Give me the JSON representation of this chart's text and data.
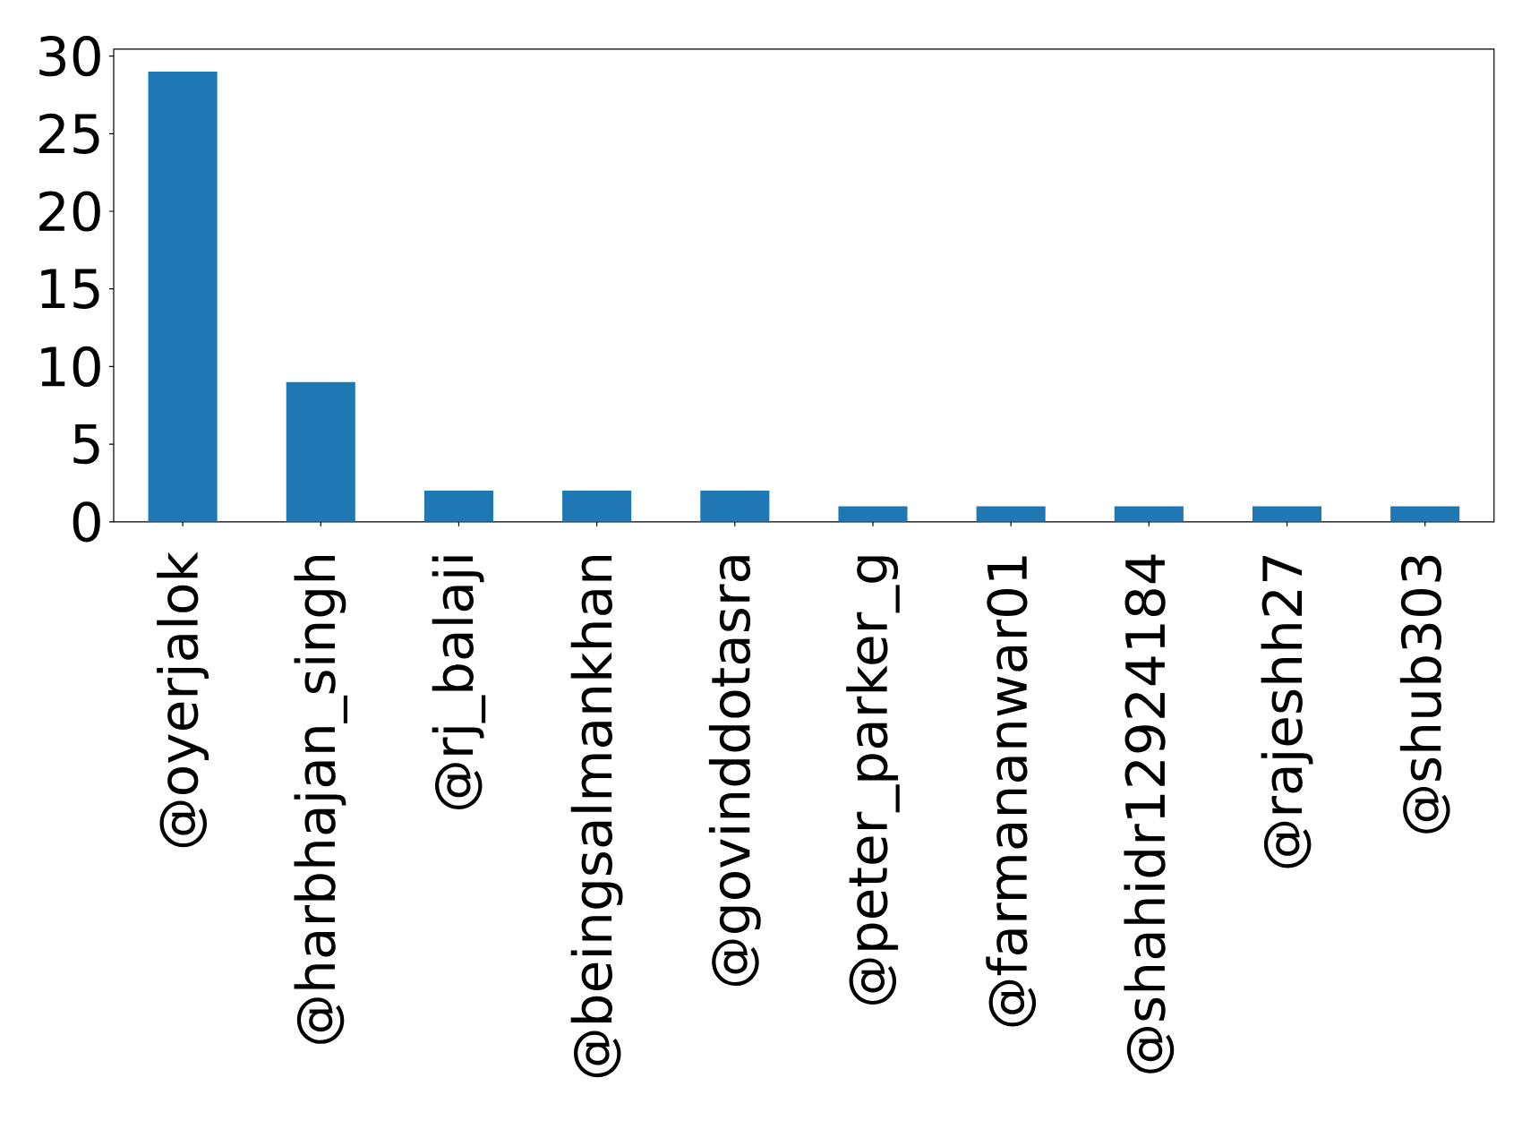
{
  "chart_data": {
    "type": "bar",
    "categories": [
      "@oyerjalok",
      "@harbhajan_singh",
      "@rj_balaji",
      "@beingsalmankhan",
      "@govinddotasra",
      "@peter_parker_g",
      "@farmananwar01",
      "@shahidr12924184",
      "@rajeshh27",
      "@shub303"
    ],
    "values": [
      29,
      9,
      2,
      2,
      2,
      1,
      1,
      1,
      1,
      1
    ],
    "color": "#1f77b4",
    "ylim": [
      0,
      30.45
    ],
    "yticks": [
      0,
      5,
      10,
      15,
      20,
      25,
      30
    ]
  }
}
